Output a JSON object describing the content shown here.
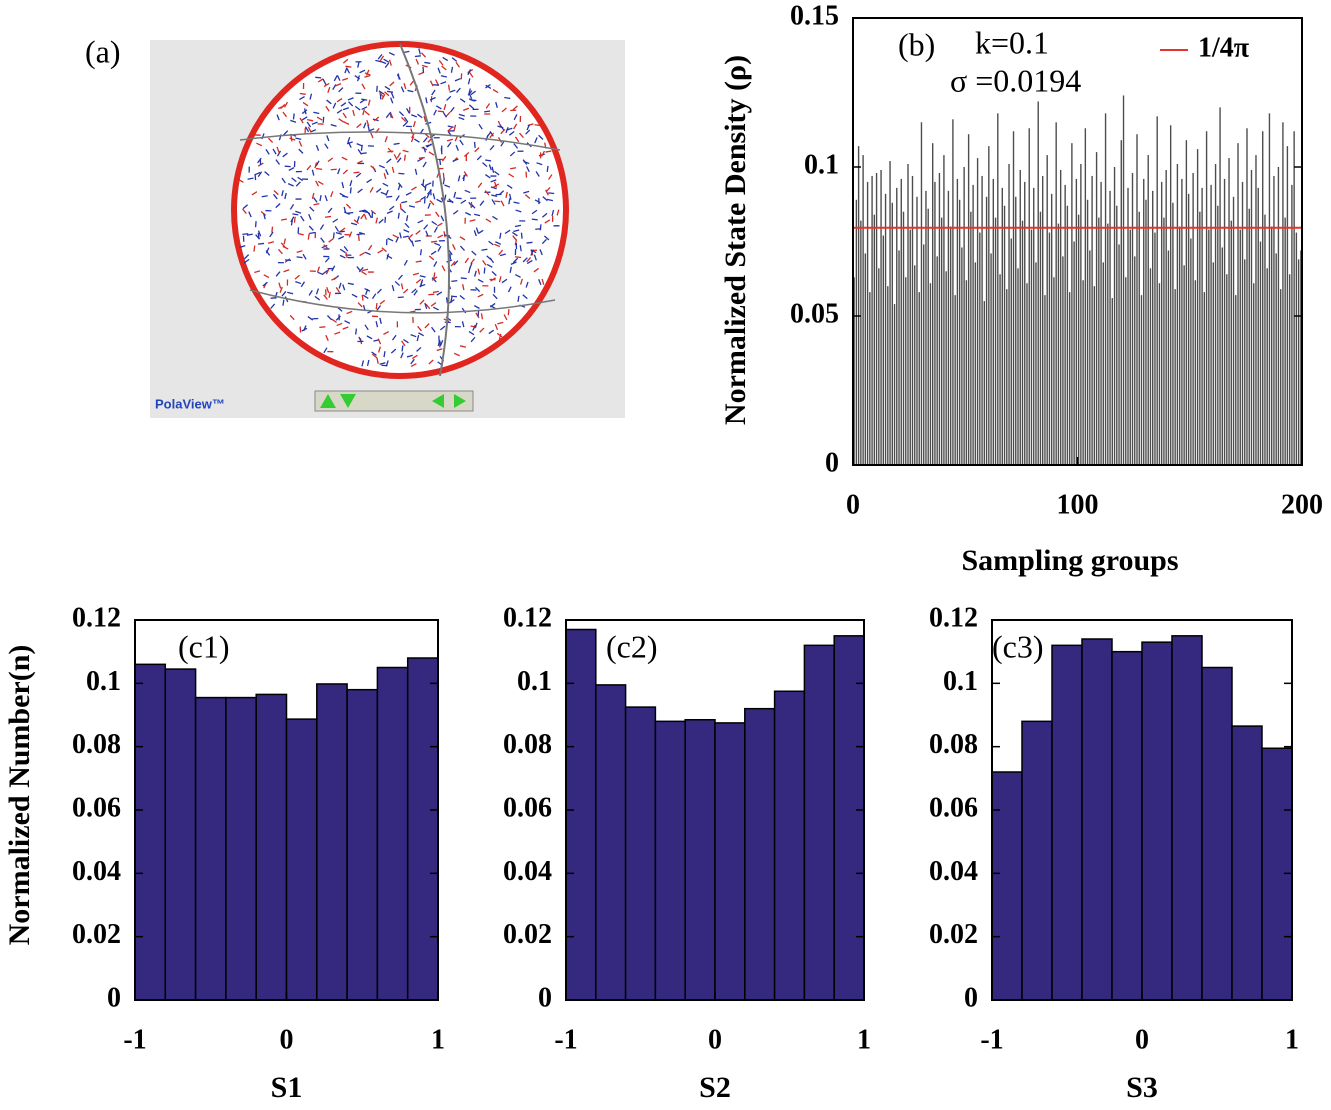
{
  "panel_a": {
    "label": "(a)",
    "logo": "PolaView™"
  },
  "chart_data": [
    {
      "type": "bar",
      "annotations": [
        "(b)",
        "k=0.1",
        "σ =0.0194"
      ],
      "xlabel": "Sampling groups",
      "ylabel": "Normalized State Density (ρ)",
      "xlim": [
        0,
        200
      ],
      "xticks": [
        0,
        100,
        200
      ],
      "ylim": [
        0,
        0.15
      ],
      "yticks": [
        0,
        0.05,
        0.1,
        0.15
      ],
      "color": "#4d4d4d",
      "reference_line": {
        "value": 0.0796,
        "label": "1/4π",
        "color": "#e8322e"
      },
      "x": [
        1,
        2,
        3,
        4,
        5,
        6,
        7,
        8,
        9,
        10,
        11,
        12,
        13,
        14,
        15,
        16,
        17,
        18,
        19,
        20,
        21,
        22,
        23,
        24,
        25,
        26,
        27,
        28,
        29,
        30,
        31,
        32,
        33,
        34,
        35,
        36,
        37,
        38,
        39,
        40,
        41,
        42,
        43,
        44,
        45,
        46,
        47,
        48,
        49,
        50,
        51,
        52,
        53,
        54,
        55,
        56,
        57,
        58,
        59,
        60,
        61,
        62,
        63,
        64,
        65,
        66,
        67,
        68,
        69,
        70,
        71,
        72,
        73,
        74,
        75,
        76,
        77,
        78,
        79,
        80,
        81,
        82,
        83,
        84,
        85,
        86,
        87,
        88,
        89,
        90,
        91,
        92,
        93,
        94,
        95,
        96,
        97,
        98,
        99,
        100,
        101,
        102,
        103,
        104,
        105,
        106,
        107,
        108,
        109,
        110,
        111,
        112,
        113,
        114,
        115,
        116,
        117,
        118,
        119,
        120,
        121,
        122,
        123,
        124,
        125,
        126,
        127,
        128,
        129,
        130,
        131,
        132,
        133,
        134,
        135,
        136,
        137,
        138,
        139,
        140,
        141,
        142,
        143,
        144,
        145,
        146,
        147,
        148,
        149,
        150,
        151,
        152,
        153,
        154,
        155,
        156,
        157,
        158,
        159,
        160,
        161,
        162,
        163,
        164,
        165,
        166,
        167,
        168,
        169,
        170,
        171,
        172,
        173,
        174,
        175,
        176,
        177,
        178,
        179,
        180,
        181,
        182,
        183,
        184,
        185,
        186,
        187,
        188,
        189,
        190,
        191,
        192,
        193,
        194,
        195,
        196,
        197,
        198,
        199,
        200
      ],
      "values": [
        0.063,
        0.089,
        0.107,
        0.082,
        0.104,
        0.071,
        0.095,
        0.058,
        0.097,
        0.084,
        0.098,
        0.066,
        0.099,
        0.077,
        0.091,
        0.06,
        0.102,
        0.088,
        0.054,
        0.093,
        0.072,
        0.096,
        0.085,
        0.063,
        0.101,
        0.079,
        0.097,
        0.067,
        0.09,
        0.058,
        0.115,
        0.074,
        0.092,
        0.086,
        0.061,
        0.108,
        0.095,
        0.07,
        0.098,
        0.083,
        0.104,
        0.065,
        0.092,
        0.08,
        0.116,
        0.057,
        0.096,
        0.089,
        0.073,
        0.1,
        0.062,
        0.111,
        0.085,
        0.094,
        0.068,
        0.103,
        0.078,
        0.097,
        0.055,
        0.09,
        0.107,
        0.071,
        0.096,
        0.083,
        0.118,
        0.064,
        0.093,
        0.087,
        0.059,
        0.101,
        0.076,
        0.112,
        0.09,
        0.066,
        0.099,
        0.082,
        0.095,
        0.061,
        0.113,
        0.079,
        0.093,
        0.068,
        0.122,
        0.085,
        0.097,
        0.057,
        0.104,
        0.078,
        0.091,
        0.063,
        0.115,
        0.081,
        0.099,
        0.07,
        0.094,
        0.087,
        0.058,
        0.108,
        0.075,
        0.096,
        0.084,
        0.101,
        0.062,
        0.113,
        0.089,
        0.072,
        0.097,
        0.06,
        0.105,
        0.083,
        0.095,
        0.068,
        0.118,
        0.081,
        0.092,
        0.056,
        0.1,
        0.087,
        0.074,
        0.109,
        0.124,
        0.063,
        0.093,
        0.079,
        0.098,
        0.07,
        0.111,
        0.085,
        0.057,
        0.096,
        0.089,
        0.104,
        0.066,
        0.092,
        0.078,
        0.117,
        0.061,
        0.095,
        0.083,
        0.099,
        0.072,
        0.114,
        0.088,
        0.059,
        0.101,
        0.08,
        0.096,
        0.067,
        0.109,
        0.091,
        0.076,
        0.098,
        0.062,
        0.106,
        0.085,
        0.093,
        0.058,
        0.112,
        0.079,
        0.094,
        0.068,
        0.101,
        0.087,
        0.12,
        0.073,
        0.096,
        0.064,
        0.103,
        0.082,
        0.09,
        0.057,
        0.108,
        0.079,
        0.095,
        0.069,
        0.113,
        0.086,
        0.099,
        0.061,
        0.104,
        0.093,
        0.075,
        0.112,
        0.084,
        0.066,
        0.118,
        0.08,
        0.097,
        0.071,
        0.1,
        0.059,
        0.115,
        0.083,
        0.107,
        0.064,
        0.094,
        0.112,
        0.078,
        0.069,
        0.072
      ]
    },
    {
      "type": "histogram",
      "annotations": [
        "(c1)"
      ],
      "xlabel": "S1",
      "ylabel": "Normalized Number(n)",
      "bins": [
        -1,
        -0.8,
        -0.6,
        -0.4,
        -0.2,
        0,
        0.2,
        0.4,
        0.6,
        0.8,
        1
      ],
      "values": [
        0.106,
        0.1045,
        0.0955,
        0.0955,
        0.0965,
        0.0887,
        0.0998,
        0.098,
        0.105,
        0.108
      ],
      "xlim": [
        -1,
        1
      ],
      "xticks": [
        -1,
        0,
        1
      ],
      "ylim": [
        0,
        0.12
      ],
      "yticks": [
        0,
        0.02,
        0.04,
        0.06,
        0.08,
        0.1,
        0.12
      ],
      "color": "#35287f"
    },
    {
      "type": "histogram",
      "annotations": [
        "(c2)"
      ],
      "xlabel": "S2",
      "bins": [
        -1,
        -0.8,
        -0.6,
        -0.4,
        -0.2,
        0,
        0.2,
        0.4,
        0.6,
        0.8,
        1
      ],
      "values": [
        0.117,
        0.0995,
        0.0925,
        0.088,
        0.0885,
        0.0875,
        0.092,
        0.0975,
        0.112,
        0.115
      ],
      "xlim": [
        -1,
        1
      ],
      "xticks": [
        -1,
        0,
        1
      ],
      "ylim": [
        0,
        0.12
      ],
      "yticks": [
        0,
        0.02,
        0.04,
        0.06,
        0.08,
        0.1,
        0.12
      ],
      "color": "#35287f"
    },
    {
      "type": "histogram",
      "annotations": [
        "(c3)"
      ],
      "xlabel": "S3",
      "bins": [
        -1,
        -0.8,
        -0.6,
        -0.4,
        -0.2,
        0,
        0.2,
        0.4,
        0.6,
        0.8,
        1
      ],
      "values": [
        0.072,
        0.088,
        0.112,
        0.114,
        0.11,
        0.113,
        0.115,
        0.105,
        0.0865,
        0.0795
      ],
      "xlim": [
        -1,
        1
      ],
      "xticks": [
        -1,
        0,
        1
      ],
      "ylim": [
        0,
        0.12
      ],
      "yticks": [
        0,
        0.02,
        0.04,
        0.06,
        0.08,
        0.1,
        0.12
      ],
      "color": "#35287f"
    }
  ]
}
